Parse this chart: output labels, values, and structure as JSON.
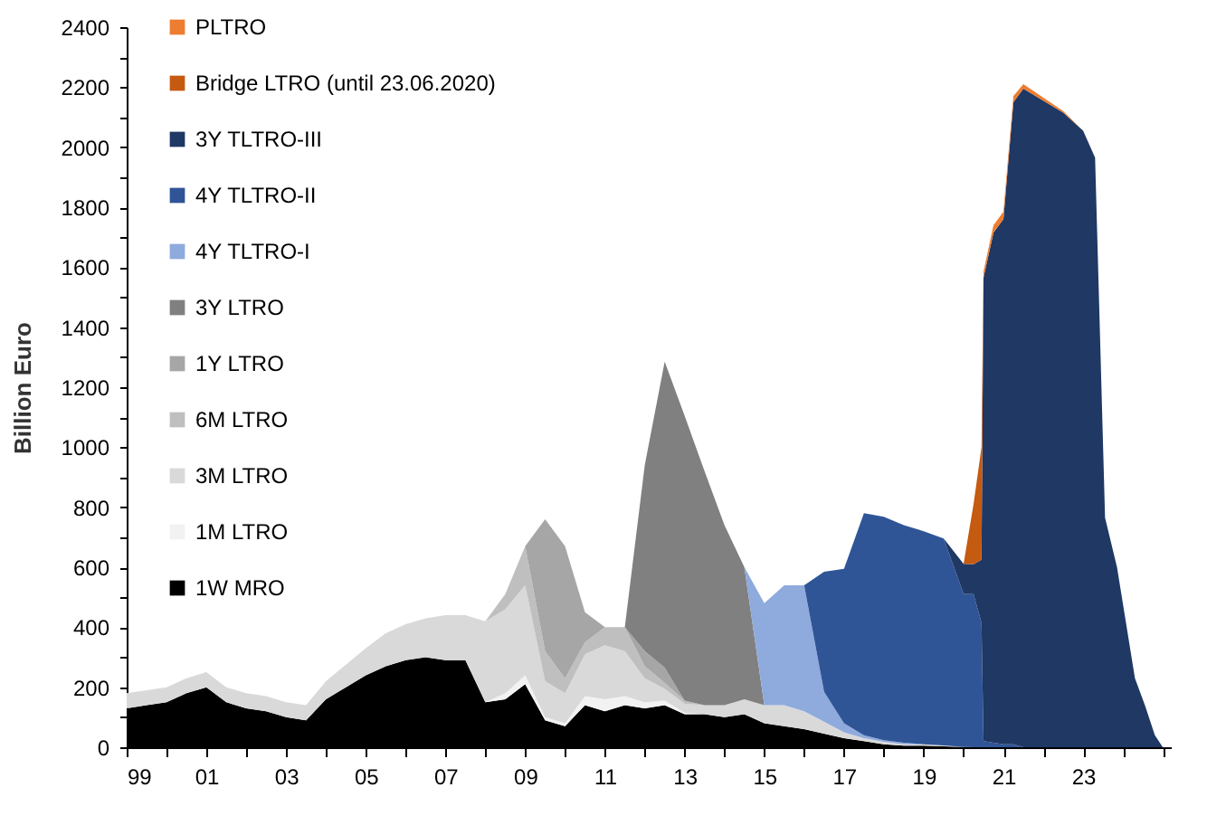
{
  "chart_data": {
    "type": "area",
    "ylabel": "Billion Euro",
    "stacked": true,
    "legend": "top left",
    "grid": false,
    "x": [
      1999,
      1999.5,
      2000,
      2000.5,
      2001,
      2001.5,
      2002,
      2002.5,
      2003,
      2003.5,
      2004,
      2004.5,
      2005,
      2005.5,
      2006,
      2006.5,
      2007,
      2007.5,
      2008,
      2008.5,
      2009,
      2009.5,
      2010,
      2010.5,
      2011,
      2011.5,
      2012,
      2012.5,
      2013,
      2013.5,
      2014,
      2014.5,
      2015,
      2015.5,
      2016,
      2016.5,
      2017,
      2017.5,
      2018,
      2018.5,
      2019,
      2019.5,
      2020,
      2020.25,
      2020.45,
      2020.5,
      2020.75,
      2021,
      2021.25,
      2021.5,
      2022.5,
      2023,
      2023.3,
      2023.55,
      2023.85,
      2024.3,
      2024.55,
      2024.8,
      2025
    ],
    "xlim": [
      1999,
      2025.2
    ],
    "xticks": [
      {
        "value": 1999,
        "label": "99"
      },
      {
        "value": 2000,
        "label": null
      },
      {
        "value": 2001,
        "label": "01"
      },
      {
        "value": 2002,
        "label": null
      },
      {
        "value": 2003,
        "label": "03"
      },
      {
        "value": 2004,
        "label": null
      },
      {
        "value": 2005,
        "label": "05"
      },
      {
        "value": 2006,
        "label": null
      },
      {
        "value": 2007,
        "label": "07"
      },
      {
        "value": 2008,
        "label": null
      },
      {
        "value": 2009,
        "label": "09"
      },
      {
        "value": 2010,
        "label": null
      },
      {
        "value": 2011,
        "label": "11"
      },
      {
        "value": 2012,
        "label": null
      },
      {
        "value": 2013,
        "label": "13"
      },
      {
        "value": 2014,
        "label": null
      },
      {
        "value": 2015,
        "label": "15"
      },
      {
        "value": 2016,
        "label": null
      },
      {
        "value": 2017,
        "label": "17"
      },
      {
        "value": 2018,
        "label": null
      },
      {
        "value": 2019,
        "label": "19"
      },
      {
        "value": 2020,
        "label": null
      },
      {
        "value": 2021,
        "label": "21"
      },
      {
        "value": 2022,
        "label": null
      },
      {
        "value": 2023,
        "label": "23"
      },
      {
        "value": 2024,
        "label": null
      },
      {
        "value": 2025,
        "label": null
      }
    ],
    "ylim": [
      0,
      2400
    ],
    "yticks": [
      0,
      {
        "value": 100,
        "label": null
      },
      200,
      {
        "value": 300,
        "label": null
      },
      400,
      {
        "value": 500,
        "label": null
      },
      600,
      {
        "value": 700,
        "label": null
      },
      800,
      {
        "value": 900,
        "label": null
      },
      1000,
      {
        "value": 1100,
        "label": null
      },
      1200,
      {
        "value": 1300,
        "label": null
      },
      1400,
      {
        "value": 1500,
        "label": null
      },
      1600,
      {
        "value": 1700,
        "label": null
      },
      1800,
      {
        "value": 1900,
        "label": null
      },
      2000,
      {
        "value": 2100,
        "label": null
      },
      2200,
      {
        "value": 2300,
        "label": null
      },
      2400
    ],
    "series": [
      {
        "name": "1W MRO",
        "color": "#000000",
        "values": [
          130,
          140,
          150,
          180,
          200,
          150,
          130,
          120,
          100,
          90,
          160,
          200,
          240,
          270,
          290,
          300,
          290,
          290,
          150,
          160,
          210,
          90,
          70,
          140,
          120,
          140,
          130,
          140,
          110,
          110,
          100,
          110,
          80,
          70,
          60,
          45,
          30,
          20,
          10,
          5,
          5,
          3,
          1,
          0,
          null,
          null,
          null,
          null,
          null,
          null,
          null,
          null,
          null,
          null,
          null,
          null,
          null,
          null,
          null
        ]
      },
      {
        "name": "1M LTRO",
        "color": "#f2f2f2",
        "values": [
          null,
          null,
          null,
          null,
          null,
          null,
          null,
          null,
          null,
          null,
          null,
          null,
          null,
          null,
          null,
          null,
          null,
          null,
          0,
          20,
          30,
          10,
          10,
          30,
          40,
          30,
          20,
          15,
          5,
          0,
          null,
          null,
          null,
          null,
          null,
          null,
          null,
          null,
          null,
          null,
          null,
          null,
          null,
          null,
          null,
          null,
          null,
          null,
          null,
          null,
          null,
          null,
          null,
          null,
          null,
          null,
          null,
          null,
          null
        ]
      },
      {
        "name": "3M LTRO",
        "color": "#d9d9d9",
        "values": [
          50,
          50,
          50,
          50,
          50,
          50,
          50,
          50,
          50,
          50,
          60,
          75,
          90,
          110,
          120,
          130,
          150,
          150,
          270,
          280,
          300,
          120,
          100,
          140,
          180,
          150,
          80,
          40,
          30,
          30,
          40,
          50,
          60,
          70,
          60,
          40,
          20,
          10,
          8,
          5,
          5,
          3,
          0,
          null,
          null,
          null,
          null,
          null,
          null,
          null,
          null,
          null,
          null,
          null,
          null,
          null,
          null,
          null,
          null
        ]
      },
      {
        "name": "6M LTRO",
        "color": "#bfbfbf",
        "values": [
          null,
          null,
          null,
          null,
          null,
          null,
          null,
          null,
          null,
          null,
          null,
          null,
          null,
          null,
          null,
          null,
          null,
          null,
          0,
          50,
          130,
          100,
          50,
          40,
          60,
          80,
          40,
          20,
          10,
          0,
          null,
          null,
          null,
          null,
          null,
          null,
          null,
          null,
          null,
          null,
          null,
          null,
          null,
          null,
          null,
          null,
          null,
          null,
          null,
          null,
          null,
          null,
          null,
          null,
          null,
          null,
          null,
          null,
          null
        ]
      },
      {
        "name": "1Y LTRO",
        "color": "#a6a6a6",
        "values": [
          null,
          null,
          null,
          null,
          null,
          null,
          null,
          null,
          null,
          null,
          null,
          null,
          null,
          null,
          null,
          null,
          null,
          null,
          null,
          null,
          0,
          440,
          440,
          100,
          0,
          0,
          50,
          50,
          0,
          null,
          null,
          null,
          null,
          null,
          null,
          null,
          null,
          null,
          null,
          null,
          null,
          null,
          null,
          null,
          null,
          null,
          null,
          null,
          null,
          null,
          null,
          null,
          null,
          null,
          null,
          null,
          null,
          null,
          null
        ]
      },
      {
        "name": "3Y LTRO",
        "color": "#808080",
        "values": [
          null,
          null,
          null,
          null,
          null,
          null,
          null,
          null,
          null,
          null,
          null,
          null,
          null,
          null,
          null,
          null,
          null,
          null,
          null,
          null,
          null,
          null,
          null,
          null,
          null,
          0,
          620,
          1020,
          950,
          780,
          600,
          440,
          0,
          null,
          null,
          null,
          null,
          null,
          null,
          null,
          null,
          null,
          null,
          null,
          null,
          null,
          null,
          null,
          null,
          null,
          null,
          null,
          null,
          null,
          null,
          null,
          null,
          null,
          null
        ]
      },
      {
        "name": "4Y TLTRO-I",
        "color": "#8faadc",
        "values": [
          null,
          null,
          null,
          null,
          null,
          null,
          null,
          null,
          null,
          null,
          null,
          null,
          null,
          null,
          null,
          null,
          null,
          null,
          null,
          null,
          null,
          null,
          null,
          null,
          null,
          null,
          null,
          null,
          null,
          null,
          null,
          0,
          340,
          400,
          420,
          100,
          30,
          10,
          5,
          5,
          0,
          null,
          null,
          null,
          null,
          null,
          null,
          null,
          null,
          null,
          null,
          null,
          null,
          null,
          null,
          null,
          null,
          null,
          null
        ]
      },
      {
        "name": "4Y TLTRO-II",
        "color": "#2f5597",
        "values": [
          null,
          null,
          null,
          null,
          null,
          null,
          null,
          null,
          null,
          null,
          null,
          null,
          null,
          null,
          null,
          null,
          null,
          null,
          null,
          null,
          null,
          null,
          null,
          null,
          null,
          null,
          null,
          null,
          null,
          null,
          null,
          null,
          null,
          null,
          0,
          400,
          515,
          740,
          745,
          725,
          710,
          690,
          510,
          510,
          415,
          20,
          15,
          10,
          10,
          0,
          null,
          null,
          null,
          null,
          null,
          null,
          null,
          null,
          null
        ]
      },
      {
        "name": "3Y TLTRO-III",
        "color": "#1f3864",
        "values": [
          null,
          null,
          null,
          null,
          null,
          null,
          null,
          null,
          null,
          null,
          null,
          null,
          null,
          null,
          null,
          null,
          null,
          null,
          null,
          null,
          null,
          null,
          null,
          null,
          null,
          null,
          null,
          null,
          null,
          null,
          null,
          null,
          null,
          null,
          null,
          null,
          null,
          null,
          null,
          null,
          null,
          0,
          100,
          100,
          210,
          1545,
          1700,
          1750,
          2140,
          2195,
          2115,
          2055,
          1965,
          765,
          600,
          230,
          140,
          40,
          0
        ]
      },
      {
        "name": "Bridge LTRO (until 23.06.2020)",
        "color": "#c55a11",
        "values": [
          null,
          null,
          null,
          null,
          null,
          null,
          null,
          null,
          null,
          null,
          null,
          null,
          null,
          null,
          null,
          null,
          null,
          null,
          null,
          null,
          null,
          null,
          null,
          null,
          null,
          null,
          null,
          null,
          null,
          null,
          null,
          null,
          null,
          null,
          null,
          null,
          null,
          null,
          null,
          null,
          null,
          null,
          0,
          200,
          375,
          0,
          null,
          null,
          null,
          null,
          null,
          null,
          null,
          null,
          null,
          null,
          null,
          null,
          null
        ]
      },
      {
        "name": "PLTRO",
        "color": "#ed7d31",
        "values": [
          null,
          null,
          null,
          null,
          null,
          null,
          null,
          null,
          null,
          null,
          null,
          null,
          null,
          null,
          null,
          null,
          null,
          null,
          null,
          null,
          null,
          null,
          null,
          null,
          null,
          null,
          null,
          null,
          null,
          null,
          null,
          null,
          null,
          null,
          null,
          null,
          null,
          null,
          null,
          null,
          null,
          null,
          null,
          null,
          0,
          20,
          25,
          25,
          20,
          15,
          5,
          0,
          null,
          null,
          null,
          null,
          null,
          null,
          null
        ]
      }
    ]
  }
}
